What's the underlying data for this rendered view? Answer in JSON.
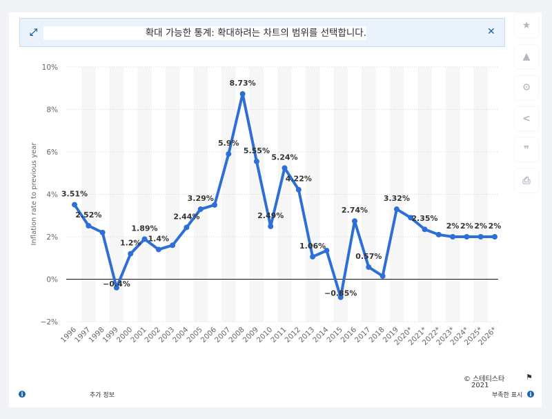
{
  "banner": {
    "text": "확대 가능한 통계: 확대하려는 차트의 범위를 선택합니다.",
    "expand_icon": "expand-arrows-icon",
    "close_icon": "close-icon"
  },
  "toolbar": [
    {
      "name": "star-icon",
      "glyph": "★"
    },
    {
      "name": "bell-icon",
      "glyph": "🔔"
    },
    {
      "name": "gear-icon",
      "glyph": "⚙"
    },
    {
      "name": "share-icon",
      "glyph": "⋖"
    },
    {
      "name": "quote-icon",
      "glyph": "❞"
    },
    {
      "name": "print-icon",
      "glyph": "⎙"
    }
  ],
  "footer": {
    "more_info": "추가 정보",
    "copyright": "© 스테티스타",
    "year": "2021",
    "show_source": "부족한 표시"
  },
  "colors": {
    "line": "#2e6fd6",
    "label": "#333333",
    "axis_text": "#666666"
  },
  "chart_data": {
    "type": "line",
    "ylabel": "Inflation rate to previous year",
    "ylim": [
      -2,
      10
    ],
    "yticks": [
      "−2%",
      "0%",
      "2%",
      "4%",
      "6%",
      "8%",
      "10%"
    ],
    "grid": true,
    "categories": [
      "1996",
      "1997",
      "1998",
      "1999",
      "2000",
      "2001",
      "2002",
      "2003",
      "2004",
      "2005",
      "2006",
      "2007",
      "2008",
      "2009",
      "2010",
      "2011",
      "2012",
      "2013",
      "2014",
      "2015",
      "2016",
      "2017",
      "2018",
      "2019",
      "2020*",
      "2021*",
      "2022*",
      "2023*",
      "2024*",
      "2025*",
      "2026*"
    ],
    "values": [
      3.51,
      2.52,
      2.2,
      -0.4,
      1.2,
      1.89,
      1.4,
      1.6,
      2.44,
      3.3,
      3.5,
      5.9,
      8.73,
      5.55,
      2.49,
      5.24,
      4.22,
      1.06,
      1.35,
      -0.85,
      2.74,
      0.57,
      0.15,
      3.3,
      2.9,
      2.35,
      2.1,
      2.0,
      2.0,
      2.0,
      2.0
    ],
    "data_labels": [
      {
        "i": 0,
        "text": "3.51%"
      },
      {
        "i": 1,
        "text": "2.52%"
      },
      {
        "i": 3,
        "text": "−0.4%"
      },
      {
        "i": 4,
        "text": "1.2%"
      },
      {
        "i": 5,
        "text": "1.89%"
      },
      {
        "i": 6,
        "text": "1.4%"
      },
      {
        "i": 8,
        "text": "2.44%"
      },
      {
        "i": 9,
        "text": "3.29%"
      },
      {
        "i": 11,
        "text": "5.9%"
      },
      {
        "i": 12,
        "text": "8.73%"
      },
      {
        "i": 13,
        "text": "5.55%"
      },
      {
        "i": 14,
        "text": "2.49%"
      },
      {
        "i": 15,
        "text": "5.24%"
      },
      {
        "i": 16,
        "text": "4.22%"
      },
      {
        "i": 17,
        "text": "1.06%"
      },
      {
        "i": 19,
        "text": "−0.85%"
      },
      {
        "i": 20,
        "text": "2.74%"
      },
      {
        "i": 21,
        "text": "0.57%"
      },
      {
        "i": 23,
        "text": "3.32%"
      },
      {
        "i": 25,
        "text": "2.35%"
      },
      {
        "i": 27,
        "text": "2%"
      },
      {
        "i": 28,
        "text": "2%"
      },
      {
        "i": 29,
        "text": "2%"
      },
      {
        "i": 30,
        "text": "2%"
      }
    ]
  }
}
